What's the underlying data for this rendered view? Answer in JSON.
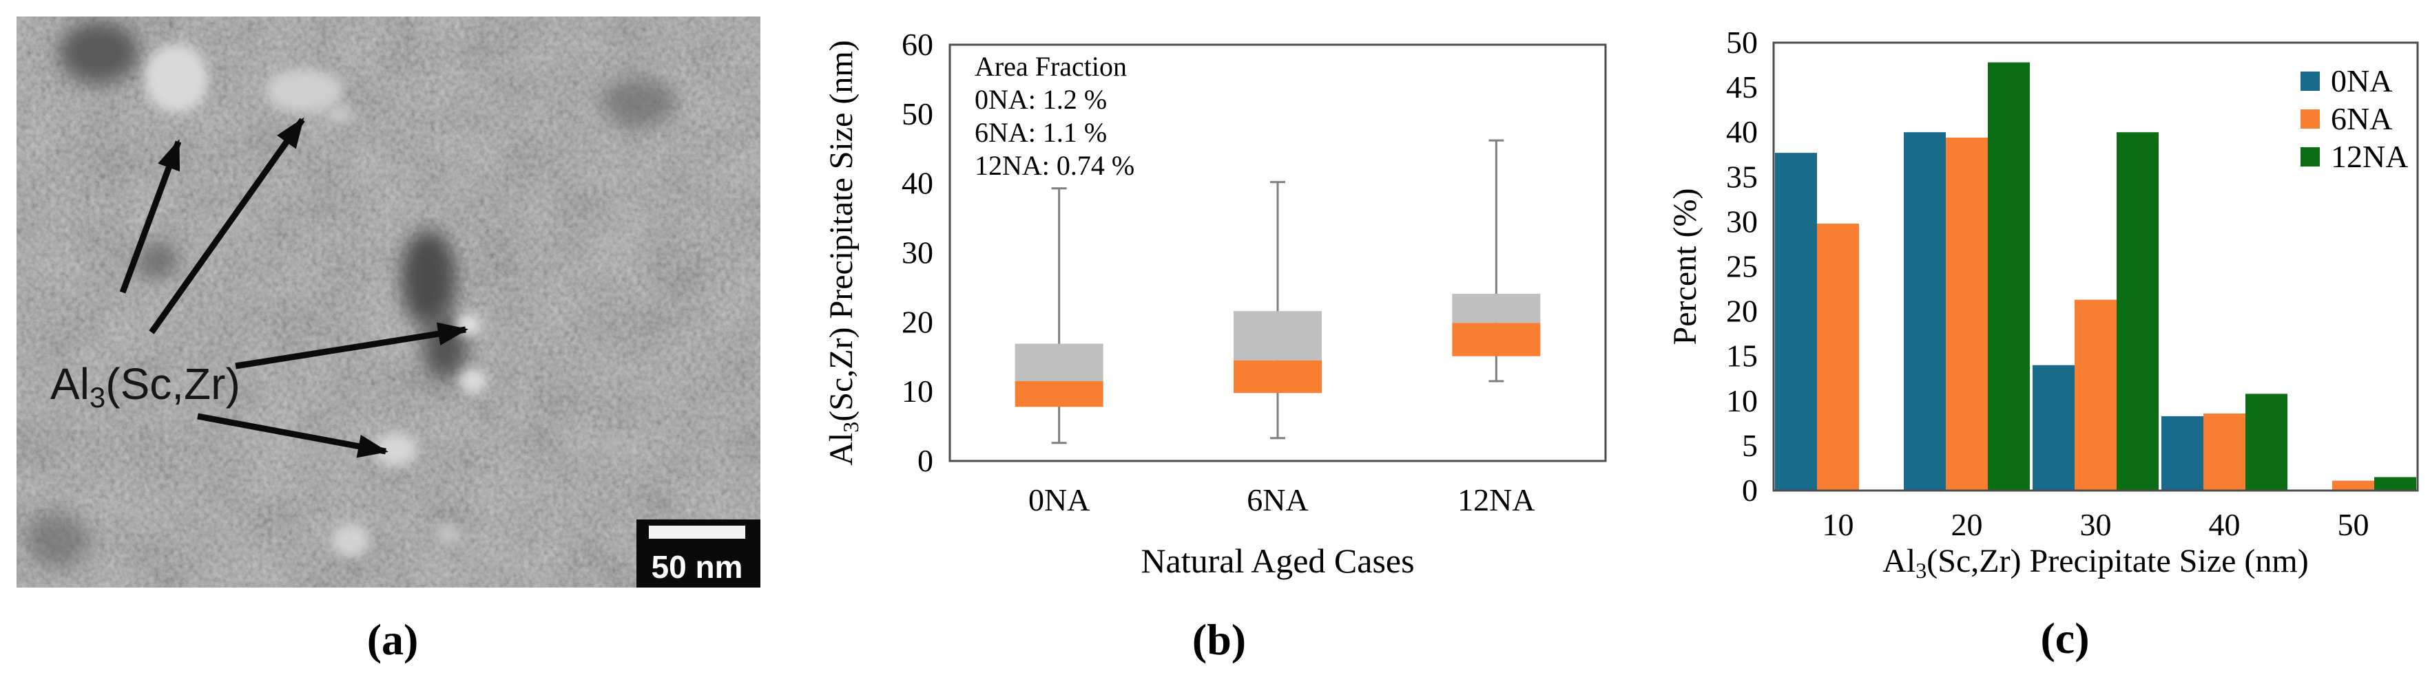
{
  "figure": {
    "captions": {
      "a": "(a)",
      "b": "(b)",
      "c": "(c)"
    }
  },
  "panel_a": {
    "type": "micrograph",
    "label": "Al₃(Sc,Zr)",
    "scale_bar_label": "50 nm"
  },
  "colors": {
    "series_0NA": "#1A6A8C",
    "series_6NA": "#F87E32",
    "series_12NA": "#0B6E14",
    "box_upper_gray": "#BFBFBF",
    "whisker_gray": "#7F7F7F",
    "axis_border": "#4D4D4D",
    "scalebar_bg": "#0A0A0A",
    "scalebar_fg": "#FFFFFF"
  },
  "chart_data": [
    {
      "type": "boxplot",
      "panel": "b",
      "title": "",
      "xlabel": "Natural Aged Cases",
      "ylabel": "Al₃(Sc,Zr) Precipitate Size (nm)",
      "ylim": [
        0,
        60
      ],
      "yticks": [
        0,
        10,
        20,
        30,
        40,
        50,
        60
      ],
      "categories": [
        "0NA",
        "6NA",
        "12NA"
      ],
      "annotation": [
        "Area Fraction",
        "0NA: 1.2 %",
        "6NA: 1.1 %",
        "12NA: 0.74 %"
      ],
      "boxes": [
        {
          "category": "0NA",
          "whisker_low": 2.6,
          "q1": 7.8,
          "median": 11.5,
          "q3": 16.9,
          "whisker_high": 39.3
        },
        {
          "category": "6NA",
          "whisker_low": 3.3,
          "q1": 9.8,
          "median": 14.5,
          "q3": 21.6,
          "whisker_high": 40.2
        },
        {
          "category": "12NA",
          "whisker_low": 11.5,
          "q1": 15.1,
          "median": 19.9,
          "q3": 24.1,
          "whisker_high": 46.2
        }
      ],
      "box_lower_fill": "#F87E32",
      "box_upper_fill": "#BFBFBF",
      "grid": false,
      "legend_position": "none"
    },
    {
      "type": "bar",
      "panel": "c",
      "title": "",
      "xlabel": "Al₃(Sc,Zr) Precipitate Size (nm)",
      "ylabel": "Percent (%)",
      "ylim": [
        0,
        50
      ],
      "yticks": [
        0,
        5,
        10,
        15,
        20,
        25,
        30,
        35,
        40,
        45,
        50
      ],
      "categories": [
        "10",
        "20",
        "30",
        "40",
        "50"
      ],
      "series": [
        {
          "name": "0NA",
          "color": "#1A6A8C",
          "values": [
            37.7,
            40.0,
            14.0,
            8.3,
            0
          ]
        },
        {
          "name": "6NA",
          "color": "#F87E32",
          "values": [
            29.8,
            39.4,
            21.3,
            8.6,
            1.1
          ]
        },
        {
          "name": "12NA",
          "color": "#0B6E14",
          "values": [
            0,
            47.8,
            40.0,
            10.8,
            1.5
          ]
        }
      ],
      "grid": false,
      "legend_position": "top-right"
    }
  ]
}
